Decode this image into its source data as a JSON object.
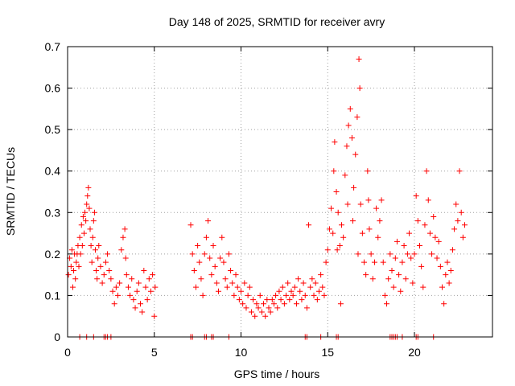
{
  "chart_data": {
    "type": "scatter",
    "title": "Day 148 of 2025, SRMTID for receiver avry",
    "xlabel": "GPS time / hours",
    "ylabel": "SRMTID / TECUs",
    "xlim": [
      0,
      24.5
    ],
    "ylim": [
      0,
      0.7
    ],
    "xticks": [
      0,
      5,
      10,
      15,
      20
    ],
    "xtick_labels": [
      "0",
      "5",
      "10",
      "15",
      "20"
    ],
    "yticks": [
      0,
      0.1,
      0.2,
      0.3,
      0.4,
      0.5,
      0.6,
      0.7
    ],
    "ytick_labels": [
      "0",
      "0.1",
      "0.2",
      "0.3",
      "0.4",
      "0.5",
      "0.6",
      "0.7"
    ],
    "grid": true,
    "marker": "+",
    "color": "#ff0000",
    "series": [
      {
        "name": "SRMTID",
        "points": [
          [
            0.05,
            0.15
          ],
          [
            0.12,
            0.19
          ],
          [
            0.2,
            0.17
          ],
          [
            0.25,
            0.21
          ],
          [
            0.3,
            0.12
          ],
          [
            0.35,
            0.16
          ],
          [
            0.4,
            0.2
          ],
          [
            0.45,
            0.14
          ],
          [
            0.5,
            0.18
          ],
          [
            0.55,
            0.2
          ],
          [
            0.6,
            0.22
          ],
          [
            0.65,
            0.17
          ],
          [
            0.7,
            0.24
          ],
          [
            0.75,
            0.2
          ],
          [
            0.8,
            0.27
          ],
          [
            0.85,
            0.22
          ],
          [
            0.9,
            0.29
          ],
          [
            0.95,
            0.25
          ],
          [
            1.0,
            0.3
          ],
          [
            1.05,
            0.28
          ],
          [
            1.1,
            0.32
          ],
          [
            1.15,
            0.34
          ],
          [
            1.2,
            0.36
          ],
          [
            1.25,
            0.31
          ],
          [
            1.3,
            0.26
          ],
          [
            1.35,
            0.22
          ],
          [
            1.4,
            0.18
          ],
          [
            1.45,
            0.24
          ],
          [
            1.5,
            0.28
          ],
          [
            1.55,
            0.3
          ],
          [
            1.6,
            0.21
          ],
          [
            1.65,
            0.16
          ],
          [
            1.7,
            0.14
          ],
          [
            1.75,
            0.19
          ],
          [
            1.8,
            0.22
          ],
          [
            1.9,
            0.17
          ],
          [
            2.0,
            0.13
          ],
          [
            2.1,
            0.15
          ],
          [
            2.2,
            0.18
          ],
          [
            2.3,
            0.2
          ],
          [
            2.4,
            0.16
          ],
          [
            2.5,
            0.14
          ],
          [
            2.6,
            0.11
          ],
          [
            2.7,
            0.08
          ],
          [
            2.8,
            0.12
          ],
          [
            2.9,
            0.1
          ],
          [
            3.0,
            0.13
          ],
          [
            3.1,
            0.21
          ],
          [
            3.2,
            0.24
          ],
          [
            3.3,
            0.26
          ],
          [
            3.35,
            0.19
          ],
          [
            3.4,
            0.15
          ],
          [
            3.5,
            0.12
          ],
          [
            3.6,
            0.1
          ],
          [
            3.7,
            0.14
          ],
          [
            3.8,
            0.09
          ],
          [
            3.9,
            0.07
          ],
          [
            4.0,
            0.11
          ],
          [
            4.1,
            0.13
          ],
          [
            4.2,
            0.08
          ],
          [
            4.3,
            0.06
          ],
          [
            4.4,
            0.16
          ],
          [
            4.5,
            0.12
          ],
          [
            4.6,
            0.09
          ],
          [
            4.7,
            0.14
          ],
          [
            4.8,
            0.11
          ],
          [
            4.9,
            0.15
          ],
          [
            5.0,
            0.05
          ],
          [
            5.05,
            0.12
          ],
          [
            7.1,
            0.27
          ],
          [
            7.2,
            0.2
          ],
          [
            7.3,
            0.16
          ],
          [
            7.4,
            0.12
          ],
          [
            7.5,
            0.22
          ],
          [
            7.6,
            0.18
          ],
          [
            7.7,
            0.14
          ],
          [
            7.8,
            0.1
          ],
          [
            7.9,
            0.2
          ],
          [
            8.0,
            0.24
          ],
          [
            8.1,
            0.28
          ],
          [
            8.2,
            0.19
          ],
          [
            8.3,
            0.15
          ],
          [
            8.4,
            0.22
          ],
          [
            8.5,
            0.17
          ],
          [
            8.6,
            0.13
          ],
          [
            8.7,
            0.11
          ],
          [
            8.8,
            0.19
          ],
          [
            8.9,
            0.24
          ],
          [
            9.0,
            0.18
          ],
          [
            9.1,
            0.14
          ],
          [
            9.2,
            0.12
          ],
          [
            9.3,
            0.2
          ],
          [
            9.4,
            0.16
          ],
          [
            9.5,
            0.13
          ],
          [
            9.6,
            0.1
          ],
          [
            9.7,
            0.15
          ],
          [
            9.8,
            0.12
          ],
          [
            9.9,
            0.09
          ],
          [
            10.0,
            0.11
          ],
          [
            10.1,
            0.08
          ],
          [
            10.2,
            0.13
          ],
          [
            10.3,
            0.07
          ],
          [
            10.4,
            0.1
          ],
          [
            10.5,
            0.12
          ],
          [
            10.6,
            0.06
          ],
          [
            10.7,
            0.09
          ],
          [
            10.8,
            0.05
          ],
          [
            10.9,
            0.08
          ],
          [
            11.0,
            0.07
          ],
          [
            11.1,
            0.1
          ],
          [
            11.2,
            0.06
          ],
          [
            11.3,
            0.08
          ],
          [
            11.4,
            0.05
          ],
          [
            11.5,
            0.09
          ],
          [
            11.6,
            0.07
          ],
          [
            11.7,
            0.06
          ],
          [
            11.8,
            0.09
          ],
          [
            11.9,
            0.08
          ],
          [
            12.0,
            0.1
          ],
          [
            12.1,
            0.07
          ],
          [
            12.2,
            0.11
          ],
          [
            12.3,
            0.09
          ],
          [
            12.4,
            0.12
          ],
          [
            12.5,
            0.08
          ],
          [
            12.6,
            0.1
          ],
          [
            12.7,
            0.13
          ],
          [
            12.8,
            0.09
          ],
          [
            12.9,
            0.11
          ],
          [
            13.0,
            0.1
          ],
          [
            13.1,
            0.12
          ],
          [
            13.2,
            0.08
          ],
          [
            13.3,
            0.14
          ],
          [
            13.4,
            0.11
          ],
          [
            13.5,
            0.09
          ],
          [
            13.6,
            0.13
          ],
          [
            13.7,
            0.1
          ],
          [
            13.8,
            0.07
          ],
          [
            13.9,
            0.27
          ],
          [
            14.0,
            0.12
          ],
          [
            14.1,
            0.14
          ],
          [
            14.2,
            0.1
          ],
          [
            14.3,
            0.13
          ],
          [
            14.4,
            0.09
          ],
          [
            14.5,
            0.11
          ],
          [
            14.6,
            0.15
          ],
          [
            14.7,
            0.12
          ],
          [
            14.8,
            0.1
          ],
          [
            14.9,
            0.18
          ],
          [
            15.0,
            0.21
          ],
          [
            15.1,
            0.26
          ],
          [
            15.2,
            0.31
          ],
          [
            15.3,
            0.25
          ],
          [
            15.35,
            0.4
          ],
          [
            15.4,
            0.47
          ],
          [
            15.5,
            0.35
          ],
          [
            15.55,
            0.21
          ],
          [
            15.6,
            0.3
          ],
          [
            15.7,
            0.22
          ],
          [
            15.75,
            0.08
          ],
          [
            15.8,
            0.27
          ],
          [
            15.9,
            0.24
          ],
          [
            16.0,
            0.39
          ],
          [
            16.1,
            0.46
          ],
          [
            16.15,
            0.32
          ],
          [
            16.2,
            0.51
          ],
          [
            16.3,
            0.55
          ],
          [
            16.4,
            0.48
          ],
          [
            16.45,
            0.28
          ],
          [
            16.5,
            0.36
          ],
          [
            16.6,
            0.44
          ],
          [
            16.7,
            0.53
          ],
          [
            16.75,
            0.2
          ],
          [
            16.8,
            0.67
          ],
          [
            16.85,
            0.6
          ],
          [
            16.9,
            0.32
          ],
          [
            17.0,
            0.25
          ],
          [
            17.1,
            0.18
          ],
          [
            17.2,
            0.15
          ],
          [
            17.3,
            0.4
          ],
          [
            17.35,
            0.33
          ],
          [
            17.4,
            0.26
          ],
          [
            17.5,
            0.2
          ],
          [
            17.6,
            0.14
          ],
          [
            17.7,
            0.18
          ],
          [
            17.8,
            0.31
          ],
          [
            17.9,
            0.24
          ],
          [
            18.0,
            0.28
          ],
          [
            18.1,
            0.33
          ],
          [
            18.2,
            0.18
          ],
          [
            18.3,
            0.1
          ],
          [
            18.4,
            0.08
          ],
          [
            18.5,
            0.14
          ],
          [
            18.6,
            0.2
          ],
          [
            18.7,
            0.16
          ],
          [
            18.8,
            0.12
          ],
          [
            18.9,
            0.19
          ],
          [
            19.0,
            0.23
          ],
          [
            19.1,
            0.15
          ],
          [
            19.2,
            0.11
          ],
          [
            19.3,
            0.18
          ],
          [
            19.4,
            0.22
          ],
          [
            19.5,
            0.14
          ],
          [
            19.6,
            0.2
          ],
          [
            19.7,
            0.25
          ],
          [
            19.8,
            0.19
          ],
          [
            19.9,
            0.13
          ],
          [
            20.0,
            0.2
          ],
          [
            20.1,
            0.34
          ],
          [
            20.2,
            0.28
          ],
          [
            20.3,
            0.22
          ],
          [
            20.4,
            0.17
          ],
          [
            20.5,
            0.12
          ],
          [
            20.6,
            0.27
          ],
          [
            20.7,
            0.4
          ],
          [
            20.8,
            0.33
          ],
          [
            20.9,
            0.25
          ],
          [
            21.0,
            0.2
          ],
          [
            21.1,
            0.29
          ],
          [
            21.2,
            0.24
          ],
          [
            21.3,
            0.19
          ],
          [
            21.4,
            0.23
          ],
          [
            21.5,
            0.17
          ],
          [
            21.6,
            0.12
          ],
          [
            21.7,
            0.08
          ],
          [
            21.8,
            0.15
          ],
          [
            21.9,
            0.18
          ],
          [
            22.0,
            0.13
          ],
          [
            22.1,
            0.16
          ],
          [
            22.2,
            0.21
          ],
          [
            22.3,
            0.26
          ],
          [
            22.4,
            0.32
          ],
          [
            22.5,
            0.28
          ],
          [
            22.6,
            0.4
          ],
          [
            22.7,
            0.3
          ],
          [
            22.8,
            0.24
          ],
          [
            22.9,
            0.27
          ]
        ]
      },
      {
        "name": "zero-baseline",
        "points": [
          [
            0.7,
            0
          ],
          [
            1.1,
            0
          ],
          [
            1.5,
            0
          ],
          [
            2.1,
            0
          ],
          [
            2.2,
            0
          ],
          [
            2.3,
            0
          ],
          [
            2.5,
            0
          ],
          [
            7.1,
            0
          ],
          [
            7.2,
            0
          ],
          [
            7.9,
            0
          ],
          [
            8.0,
            0
          ],
          [
            8.3,
            0
          ],
          [
            8.4,
            0
          ],
          [
            9.3,
            0
          ],
          [
            13.7,
            0
          ],
          [
            13.8,
            0
          ],
          [
            14.6,
            0
          ],
          [
            15.5,
            0
          ],
          [
            15.6,
            0
          ],
          [
            18.6,
            0
          ],
          [
            18.7,
            0
          ],
          [
            18.8,
            0
          ],
          [
            18.9,
            0
          ],
          [
            19.0,
            0
          ],
          [
            19.3,
            0
          ],
          [
            20.1,
            0
          ],
          [
            20.2,
            0
          ],
          [
            21.1,
            0
          ]
        ]
      }
    ]
  }
}
